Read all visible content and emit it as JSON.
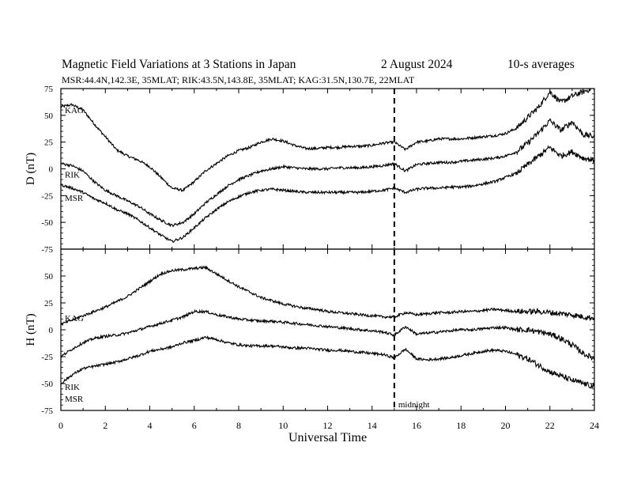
{
  "chart_data": {
    "type": "line",
    "title_left": "Magnetic Field Variations at 3 Stations in Japan",
    "title_date": "2   August  2024",
    "title_right": "10-s averages",
    "subtitle": "MSR:44.4N,142.3E, 35MLAT;  RIK:43.5N,143.8E, 35MLAT;  KAG:31.5N,130.7E, 22MLAT",
    "xlabel": "Universal Time",
    "xlim": [
      0,
      24
    ],
    "xticks": [
      "0",
      "2",
      "4",
      "6",
      "8",
      "10",
      "12",
      "14",
      "16",
      "18",
      "20",
      "22",
      "24"
    ],
    "midnight_marker": {
      "x": 15,
      "label": "midnight"
    },
    "panels": [
      {
        "ylabel": "D (nT)",
        "ylim": [
          -75,
          75
        ],
        "yticks": [
          "75",
          "50",
          "25",
          "0",
          "-25",
          "-50",
          "-75"
        ],
        "series": [
          {
            "name": "KAG",
            "x": [
              0,
              0.5,
              1,
              1.5,
              2,
              2.5,
              3,
              3.5,
              4,
              4.5,
              5,
              5.5,
              6,
              6.5,
              7,
              7.5,
              8,
              8.5,
              9,
              9.5,
              10,
              10.5,
              11,
              11.5,
              12,
              12.5,
              13,
              13.5,
              14,
              14.5,
              15,
              15.5,
              16,
              16.5,
              17,
              17.5,
              18,
              18.5,
              19,
              19.5,
              20,
              20.5,
              21,
              21.5,
              22,
              22.5,
              23,
              23.5,
              24
            ],
            "y": [
              58,
              60,
              55,
              42,
              30,
              18,
              12,
              8,
              2,
              -8,
              -18,
              -20,
              -12,
              -2,
              5,
              12,
              17,
              20,
              25,
              28,
              26,
              22,
              19,
              19,
              20,
              20,
              21,
              21,
              22,
              24,
              25,
              18,
              25,
              26,
              28,
              28,
              28,
              29,
              30,
              31,
              33,
              38,
              48,
              58,
              72,
              62,
              68,
              72,
              76
            ]
          },
          {
            "name": "RIK",
            "x": [
              0,
              0.5,
              1,
              1.5,
              2,
              2.5,
              3,
              3.5,
              4,
              4.5,
              5,
              5.5,
              6,
              6.5,
              7,
              7.5,
              8,
              8.5,
              9,
              9.5,
              10,
              10.5,
              11,
              11.5,
              12,
              12.5,
              13,
              13.5,
              14,
              14.5,
              15,
              15.5,
              16,
              16.5,
              17,
              17.5,
              18,
              18.5,
              19,
              19.5,
              20,
              20.5,
              21,
              21.5,
              22,
              22.5,
              23,
              23.5,
              24
            ],
            "y": [
              5,
              3,
              -2,
              -12,
              -20,
              -25,
              -30,
              -35,
              -42,
              -48,
              -53,
              -50,
              -42,
              -32,
              -24,
              -16,
              -10,
              -6,
              -2,
              0,
              2,
              1,
              0,
              0,
              0,
              1,
              1,
              1,
              2,
              3,
              5,
              -2,
              4,
              5,
              6,
              6,
              7,
              8,
              9,
              10,
              12,
              16,
              24,
              34,
              45,
              36,
              44,
              32,
              30
            ]
          },
          {
            "name": "MSR",
            "x": [
              0,
              0.5,
              1,
              1.5,
              2,
              2.5,
              3,
              3.5,
              4,
              4.5,
              5,
              5.5,
              6,
              6.5,
              7,
              7.5,
              8,
              8.5,
              9,
              9.5,
              10,
              10.5,
              11,
              11.5,
              12,
              12.5,
              13,
              13.5,
              14,
              14.5,
              15,
              15.5,
              16,
              16.5,
              17,
              17.5,
              18,
              18.5,
              19,
              19.5,
              20,
              20.5,
              21,
              21.5,
              22,
              22.5,
              23,
              23.5,
              24
            ],
            "y": [
              -15,
              -18,
              -22,
              -28,
              -32,
              -38,
              -42,
              -48,
              -55,
              -62,
              -68,
              -64,
              -55,
              -46,
              -38,
              -31,
              -26,
              -22,
              -20,
              -19,
              -20,
              -21,
              -22,
              -22,
              -22,
              -22,
              -22,
              -22,
              -21,
              -20,
              -18,
              -22,
              -19,
              -18,
              -18,
              -17,
              -17,
              -16,
              -14,
              -12,
              -8,
              -4,
              4,
              12,
              20,
              12,
              16,
              10,
              8
            ]
          }
        ]
      },
      {
        "ylabel": "H (nT)",
        "ylim": [
          -75,
          75
        ],
        "yticks": [
          "75",
          "50",
          "25",
          "0",
          "-25",
          "-50",
          "-75"
        ],
        "series": [
          {
            "name": "KAG",
            "x": [
              0,
              0.5,
              1,
              1.5,
              2,
              2.5,
              3,
              3.5,
              4,
              4.5,
              5,
              5.5,
              6,
              6.5,
              7,
              7.5,
              8,
              8.5,
              9,
              9.5,
              10,
              10.5,
              11,
              11.5,
              12,
              12.5,
              13,
              13.5,
              14,
              14.5,
              15,
              15.5,
              16,
              16.5,
              17,
              17.5,
              18,
              18.5,
              19,
              19.5,
              20,
              20.5,
              21,
              21.5,
              22,
              22.5,
              23,
              23.5,
              24
            ],
            "y": [
              5,
              9,
              13,
              17,
              21,
              26,
              31,
              38,
              45,
              52,
              55,
              56,
              57,
              58,
              52,
              46,
              40,
              35,
              30,
              27,
              24,
              22,
              20,
              19,
              17,
              16,
              15,
              14,
              13,
              12,
              12,
              16,
              14,
              15,
              16,
              16,
              17,
              17,
              18,
              19,
              18,
              17,
              17,
              17,
              16,
              15,
              14,
              12,
              11
            ]
          },
          {
            "name": "RIK",
            "x": [
              0,
              0.5,
              1,
              1.5,
              2,
              2.5,
              3,
              3.5,
              4,
              4.5,
              5,
              5.5,
              6,
              6.5,
              7,
              7.5,
              8,
              8.5,
              9,
              9.5,
              10,
              10.5,
              11,
              11.5,
              12,
              12.5,
              13,
              13.5,
              14,
              14.5,
              15,
              15.5,
              16,
              16.5,
              17,
              17.5,
              18,
              18.5,
              19,
              19.5,
              20,
              20.5,
              21,
              21.5,
              22,
              22.5,
              23,
              23.5,
              24
            ],
            "y": [
              -25,
              -18,
              -12,
              -8,
              -6,
              -5,
              -3,
              0,
              3,
              6,
              9,
              12,
              17,
              17,
              14,
              12,
              10,
              9,
              8,
              8,
              7,
              6,
              5,
              4,
              3,
              2,
              1,
              0,
              -1,
              -2,
              -5,
              3,
              -4,
              -3,
              -2,
              -1,
              0,
              0,
              1,
              2,
              2,
              0,
              0,
              -2,
              -4,
              -8,
              -14,
              -22,
              -27
            ]
          },
          {
            "name": "MSR",
            "x": [
              0,
              0.5,
              1,
              1.5,
              2,
              2.5,
              3,
              3.5,
              4,
              4.5,
              5,
              5.5,
              6,
              6.5,
              7,
              7.5,
              8,
              8.5,
              9,
              9.5,
              10,
              10.5,
              11,
              11.5,
              12,
              12.5,
              13,
              13.5,
              14,
              14.5,
              15,
              15.5,
              16,
              16.5,
              17,
              17.5,
              18,
              18.5,
              19,
              19.5,
              20,
              20.5,
              21,
              21.5,
              22,
              22.5,
              23,
              23.5,
              24
            ],
            "y": [
              -50,
              -42,
              -36,
              -34,
              -32,
              -30,
              -27,
              -24,
              -20,
              -18,
              -16,
              -12,
              -10,
              -7,
              -9,
              -12,
              -14,
              -15,
              -15,
              -15,
              -16,
              -17,
              -17,
              -18,
              -19,
              -19,
              -20,
              -21,
              -22,
              -23,
              -26,
              -18,
              -27,
              -28,
              -27,
              -26,
              -24,
              -22,
              -20,
              -19,
              -20,
              -23,
              -27,
              -33,
              -39,
              -43,
              -47,
              -50,
              -53
            ]
          }
        ]
      }
    ]
  }
}
